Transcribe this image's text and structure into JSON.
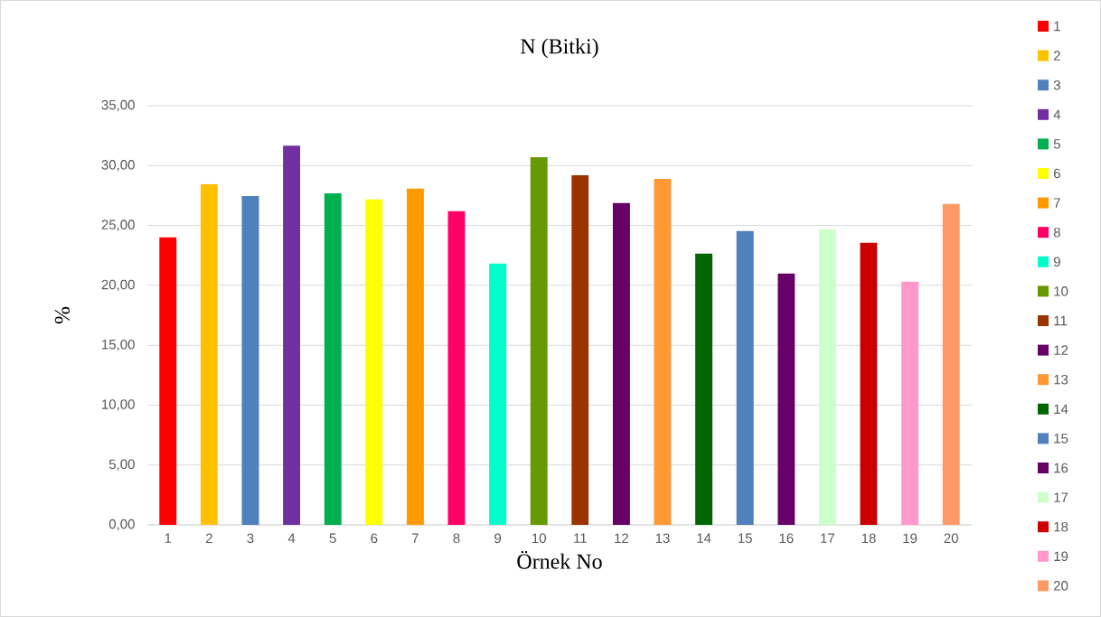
{
  "chart_data": {
    "type": "bar",
    "title": "N (Bitki)",
    "xlabel": "Örnek No",
    "ylabel": "%",
    "categories": [
      "1",
      "2",
      "3",
      "4",
      "5",
      "6",
      "7",
      "8",
      "9",
      "10",
      "11",
      "12",
      "13",
      "14",
      "15",
      "16",
      "17",
      "18",
      "19",
      "20"
    ],
    "values": [
      24.0,
      28.45,
      27.46,
      31.66,
      27.69,
      27.18,
      28.08,
      26.19,
      21.81,
      30.7,
      29.2,
      26.87,
      28.89,
      22.64,
      24.53,
      20.98,
      24.66,
      23.55,
      20.31,
      26.79
    ],
    "colors": [
      "#ff0000",
      "#ffc000",
      "#4f81bd",
      "#7030a0",
      "#00b050",
      "#ffff00",
      "#ff9900",
      "#ff0066",
      "#00ffcc",
      "#669900",
      "#993300",
      "#660066",
      "#ff9933",
      "#006600",
      "#4f81bd",
      "#660066",
      "#ccffcc",
      "#cc0000",
      "#ff99cc",
      "#ff9966"
    ],
    "ylim": [
      0,
      35
    ],
    "yticks": [
      {
        "value": 0,
        "label": "0,00"
      },
      {
        "value": 5,
        "label": "5,00"
      },
      {
        "value": 10,
        "label": "10,00"
      },
      {
        "value": 15,
        "label": "15,00"
      },
      {
        "value": 20,
        "label": "20,00"
      },
      {
        "value": 25,
        "label": "25,00"
      },
      {
        "value": 30,
        "label": "30,00"
      },
      {
        "value": 35,
        "label": "35,00"
      }
    ],
    "grid": "y"
  }
}
